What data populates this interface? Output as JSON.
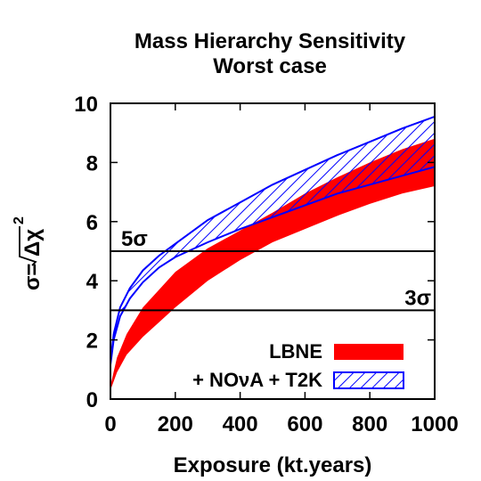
{
  "chart_data": {
    "type": "area",
    "title": "Mass Hierarchy Sensitivity",
    "subtitle": "Worst case",
    "xlabel": "Exposure (kt.years)",
    "ylabel": "σ= √Δχ²",
    "ylabel_prefix": "σ=",
    "ylabel_radicand": "Δχ",
    "ylabel_power": "2",
    "xlim": [
      0,
      1000
    ],
    "ylim": [
      0,
      10
    ],
    "xticks": [
      0,
      200,
      400,
      600,
      800,
      1000
    ],
    "yticks": [
      0,
      2,
      4,
      6,
      8,
      10
    ],
    "xtick_labels": [
      "0",
      "200",
      "400",
      "600",
      "800",
      "1000"
    ],
    "ytick_labels": [
      "0",
      "2",
      "4",
      "6",
      "8",
      "10"
    ],
    "grid": false,
    "legend_position": "bottom-right",
    "reference_lines": [
      {
        "y": 5,
        "label": "5σ",
        "label_side": "left"
      },
      {
        "y": 3,
        "label": "3σ",
        "label_side": "right"
      }
    ],
    "series": [
      {
        "name": "LBNE",
        "style": "solid",
        "color": "#ff0000",
        "x": [
          0,
          20,
          50,
          100,
          150,
          200,
          300,
          400,
          500,
          600,
          700,
          800,
          900,
          1000
        ],
        "lower": [
          0.3,
          0.9,
          1.5,
          2.1,
          2.6,
          3.1,
          4.0,
          4.7,
          5.3,
          5.75,
          6.2,
          6.6,
          6.95,
          7.2
        ],
        "upper": [
          0.45,
          1.4,
          2.2,
          3.1,
          3.7,
          4.3,
          5.1,
          5.7,
          6.3,
          6.95,
          7.5,
          8.0,
          8.45,
          8.8
        ]
      },
      {
        "name": "+ NOνA + T2K",
        "style": "hatched",
        "color": "#0000ff",
        "x": [
          0,
          10,
          30,
          60,
          100,
          150,
          200,
          300,
          400,
          500,
          600,
          700,
          800,
          900,
          1000
        ],
        "lower": [
          1.15,
          2.0,
          2.8,
          3.4,
          3.95,
          4.45,
          4.8,
          5.3,
          5.75,
          6.15,
          6.55,
          6.95,
          7.25,
          7.55,
          7.85
        ],
        "upper": [
          1.2,
          2.2,
          3.1,
          3.75,
          4.35,
          4.85,
          5.25,
          6.05,
          6.65,
          7.25,
          7.75,
          8.25,
          8.7,
          9.15,
          9.55
        ]
      }
    ]
  }
}
